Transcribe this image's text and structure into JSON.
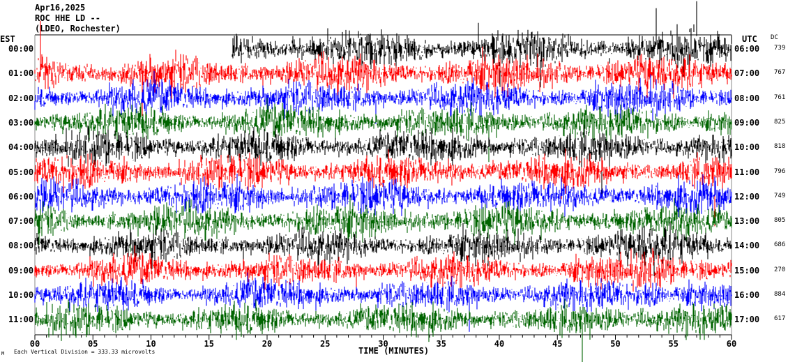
{
  "header": {
    "date": "Apr16,2025",
    "station": "ROC HHE LD --",
    "network": "(LDEO, Rochester)"
  },
  "chart_data": {
    "type": "line",
    "title": "Apr16,2025 ROC HHE LD --",
    "left_axis_label": "EST",
    "right_axis_label": "UTC",
    "dc_label": "DC",
    "xlabel": "TIME (MINUTES)",
    "xlim": [
      0,
      60
    ],
    "x_ticks": [
      "00",
      "05",
      "10",
      "15",
      "20",
      "25",
      "30",
      "35",
      "40",
      "45",
      "50",
      "55",
      "60"
    ],
    "scale_note": "Each Vertical Division = 333.33 microvolts",
    "corner_mark": "M",
    "trace_colors": [
      "#000000",
      "#ff0000",
      "#0000ff",
      "#006400"
    ],
    "rows": [
      {
        "est": "00:00",
        "utc": "06:00",
        "dc": "739",
        "color": "#000000",
        "data_start_min": 17
      },
      {
        "est": "01:00",
        "utc": "07:00",
        "dc": "767",
        "color": "#ff0000"
      },
      {
        "est": "02:00",
        "utc": "08:00",
        "dc": "761",
        "color": "#0000ff"
      },
      {
        "est": "03:00",
        "utc": "09:00",
        "dc": "825",
        "color": "#006400"
      },
      {
        "est": "04:00",
        "utc": "10:00",
        "dc": "818",
        "color": "#000000"
      },
      {
        "est": "05:00",
        "utc": "11:00",
        "dc": "796",
        "color": "#ff0000"
      },
      {
        "est": "06:00",
        "utc": "12:00",
        "dc": "749",
        "color": "#0000ff"
      },
      {
        "est": "07:00",
        "utc": "13:00",
        "dc": "805",
        "color": "#006400"
      },
      {
        "est": "08:00",
        "utc": "14:00",
        "dc": "686",
        "color": "#000000"
      },
      {
        "est": "09:00",
        "utc": "15:00",
        "dc": "270",
        "color": "#ff0000"
      },
      {
        "est": "10:00",
        "utc": "16:00",
        "dc": "884",
        "color": "#0000ff"
      },
      {
        "est": "11:00",
        "utc": "17:00",
        "dc": "617",
        "color": "#006400"
      }
    ]
  }
}
